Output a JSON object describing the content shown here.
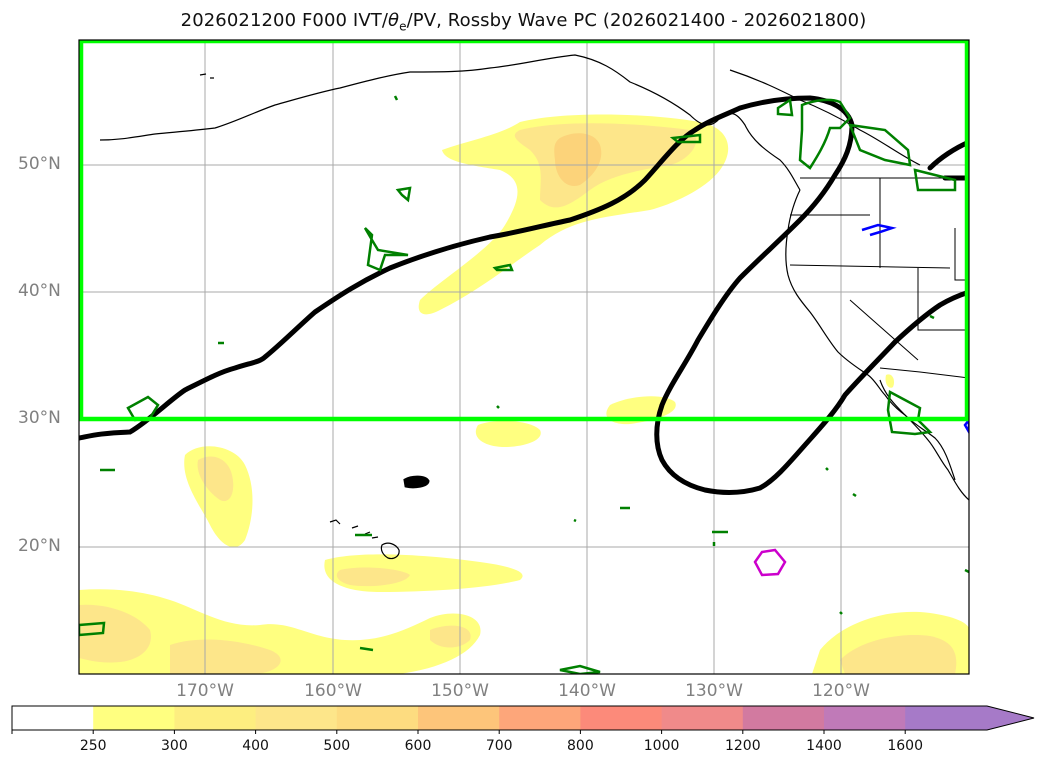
{
  "title_prefix": "2026021200 F000 IVT/",
  "title_theta": "θ",
  "title_theta_sub": "e",
  "title_suffix": "/PV, Rossby Wave PC (2026021400 - 2026021800)",
  "map": {
    "lat_labels": [
      "50°N",
      "40°N",
      "30°N",
      "20°N"
    ],
    "lon_labels": [
      "170°W",
      "160°W",
      "150°W",
      "140°W",
      "130°W",
      "120°W"
    ],
    "box_color": "#00ff00",
    "ivt_colors": [
      "#ffff80",
      "#fde68a",
      "#fcd37a"
    ],
    "theta_contour_color": "#008000",
    "pv_contour_color_blue": "#0000ff",
    "pv_contour_color_magenta": "#cc00cc",
    "rossby_contour_color": "#000000"
  },
  "colorbar": {
    "labels": [
      "250",
      "300",
      "400",
      "500",
      "600",
      "700",
      "800",
      "1000",
      "1200",
      "1400",
      "1600"
    ],
    "colors": [
      "#ffffff",
      "#ffff80",
      "#fdee80",
      "#fde68a",
      "#fddc80",
      "#fdc57a",
      "#fda67a",
      "#fc8a7a",
      "#f08a8a",
      "#d27aa0",
      "#c07ab8",
      "#a67ac8"
    ]
  }
}
